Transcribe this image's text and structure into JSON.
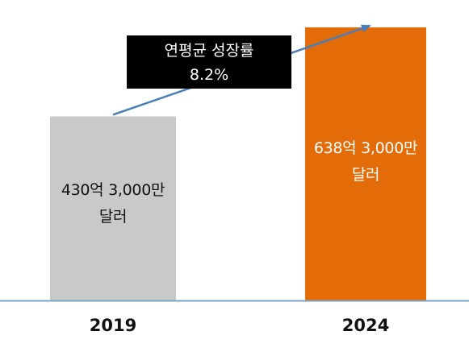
{
  "chart_data": {
    "type": "bar",
    "categories": [
      "2019",
      "2024"
    ],
    "values": [
      430.3,
      638.3
    ],
    "value_unit": "억 달러",
    "data_labels": [
      [
        "430억 3,000만",
        "달러"
      ],
      [
        "638억 3,000만",
        "달러"
      ]
    ],
    "colors": [
      "#c9c9c9",
      "#e36c09"
    ],
    "annotation": {
      "line1": "연평균 성장률",
      "line2": "8.2%",
      "arrow_color": "#4a7ebb"
    },
    "axis_color": "#7ba3c8",
    "grid": false,
    "legend": "none"
  }
}
